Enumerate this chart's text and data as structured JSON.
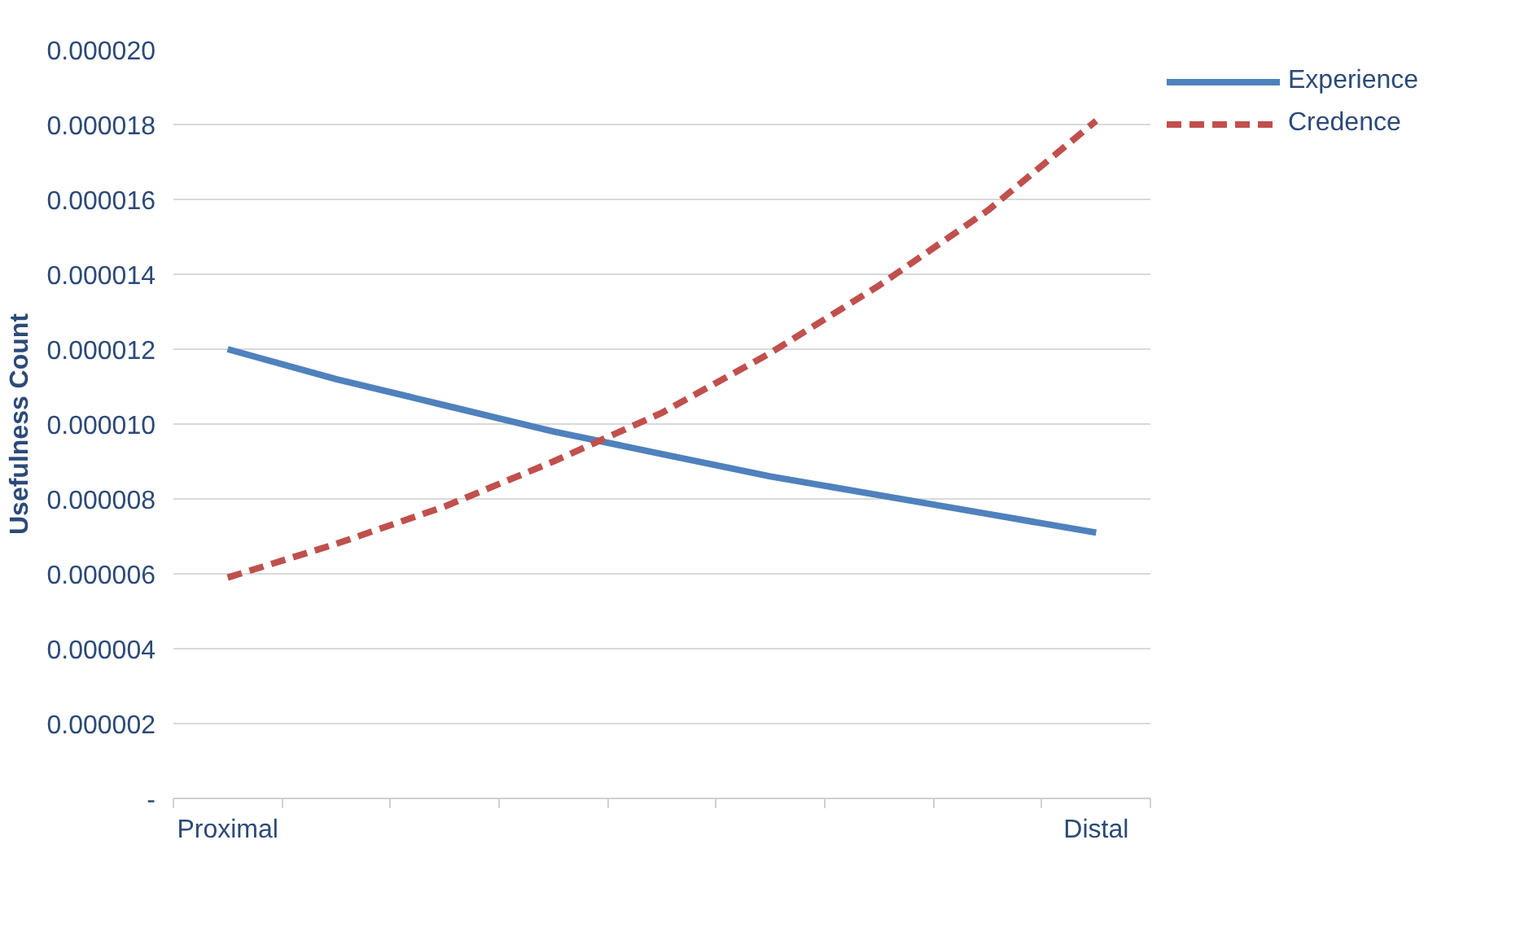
{
  "chart_data": {
    "type": "line",
    "ylabel": "Usefulness Count",
    "categories": [
      "Proximal",
      null,
      null,
      null,
      null,
      null,
      null,
      null,
      "Distal"
    ],
    "series": [
      {
        "name": "Experience",
        "color": "#4f81bd",
        "line_style": "solid",
        "values": [
          1.2e-05,
          1.12e-05,
          1.05e-05,
          9.8e-06,
          9.2e-06,
          8.6e-06,
          8.1e-06,
          7.6e-06,
          7.1e-06
        ]
      },
      {
        "name": "Credence",
        "color": "#c0504d",
        "line_style": "dashed",
        "values": [
          5.9e-06,
          6.8e-06,
          7.8e-06,
          9e-06,
          1.03e-05,
          1.19e-05,
          1.37e-05,
          1.57e-05,
          1.81e-05
        ]
      }
    ],
    "ylim": [
      0,
      2e-05
    ],
    "yticks": [
      {
        "value": 0,
        "label": "-"
      },
      {
        "value": 2e-06,
        "label": "0.000002"
      },
      {
        "value": 4e-06,
        "label": "0.000004"
      },
      {
        "value": 6e-06,
        "label": "0.000006"
      },
      {
        "value": 8e-06,
        "label": "0.000008"
      },
      {
        "value": 1e-05,
        "label": "0.000010"
      },
      {
        "value": 1.2e-05,
        "label": "0.000012"
      },
      {
        "value": 1.4e-05,
        "label": "0.000014"
      },
      {
        "value": 1.6e-05,
        "label": "0.000016"
      },
      {
        "value": 1.8e-05,
        "label": "0.000018"
      },
      {
        "value": 2e-05,
        "label": "0.000020"
      }
    ],
    "grid": "y",
    "legend": "top right",
    "marker": "none"
  }
}
